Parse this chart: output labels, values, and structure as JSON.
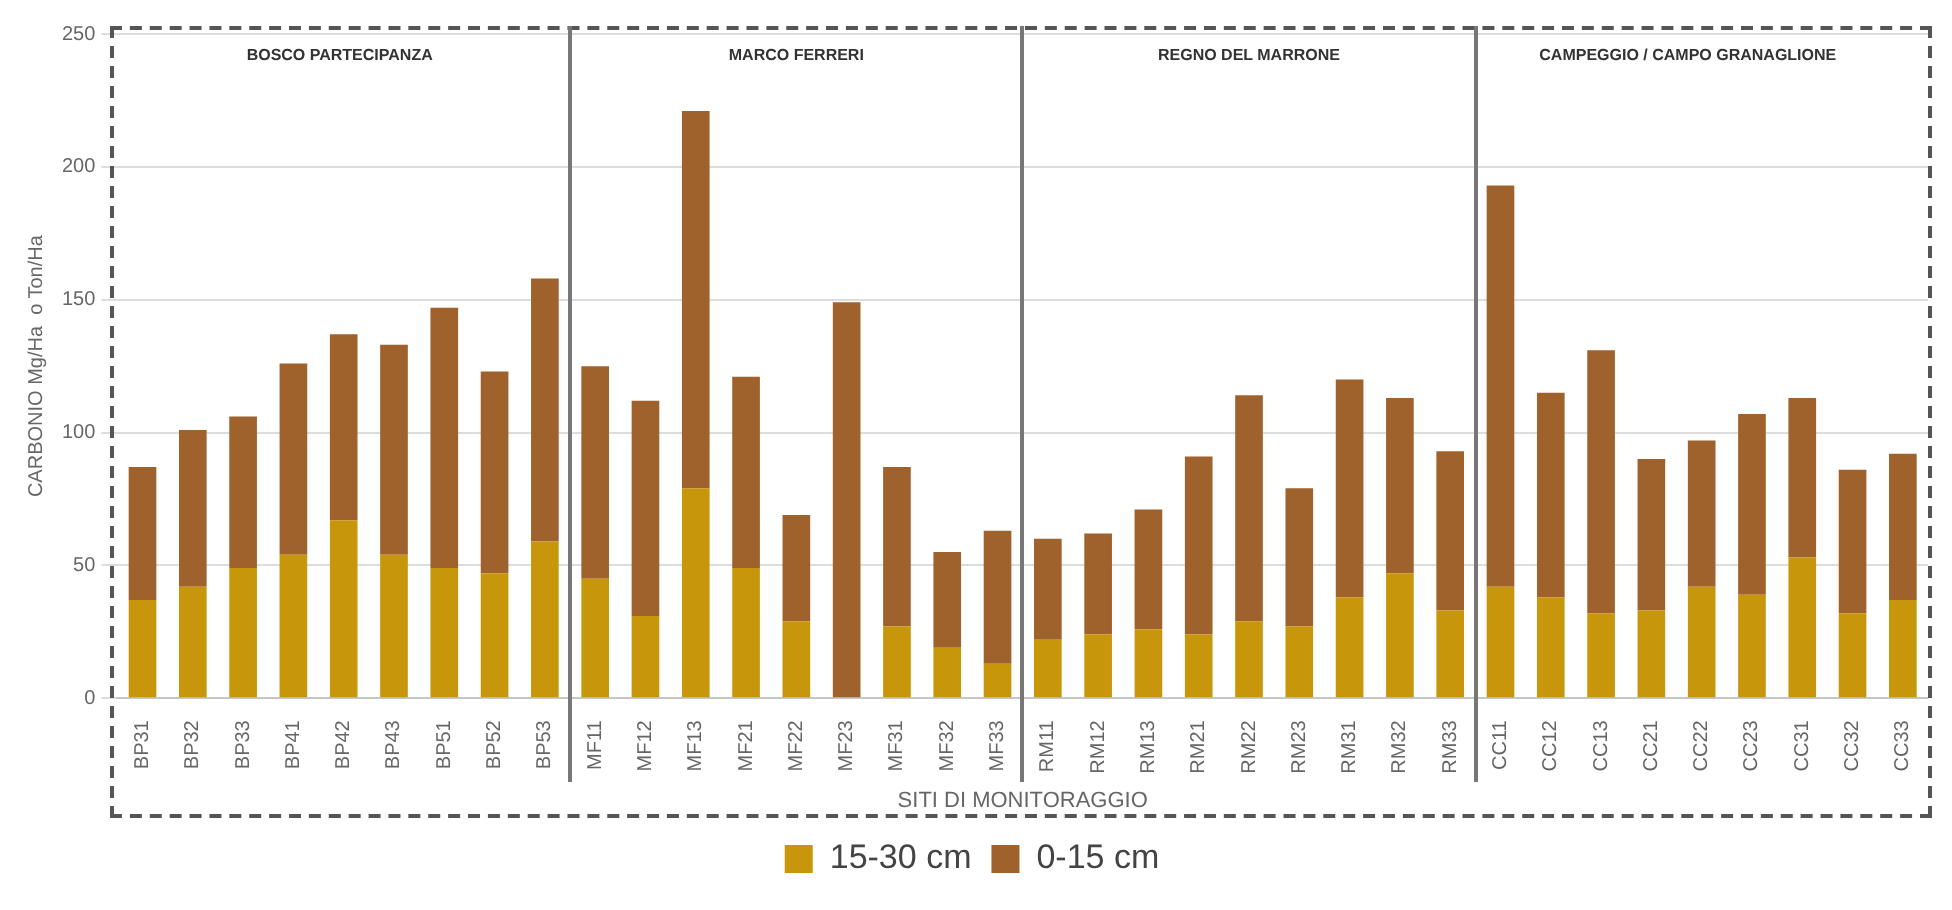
{
  "chart_data": {
    "type": "bar",
    "stacked": true,
    "ylabel": "CARBONIO Mg/Ha  o Ton/Ha",
    "xlabel": "SITI DI MONITORAGGIO",
    "categories": [
      "BP31",
      "BP32",
      "BP33",
      "BP41",
      "BP42",
      "BP43",
      "BP51",
      "BP52",
      "BP53",
      "MF11",
      "MF12",
      "MF13",
      "MF21",
      "MF22",
      "MF23",
      "MF31",
      "MF32",
      "MF33",
      "RM11",
      "RM12",
      "RM13",
      "RM21",
      "RM22",
      "RM23",
      "RM31",
      "RM32",
      "RM33",
      "CC11",
      "CC12",
      "CC13",
      "CC21",
      "CC22",
      "CC23",
      "CC31",
      "CC32",
      "CC33"
    ],
    "series": [
      {
        "name": "15-30 cm",
        "color": "#c8960a",
        "values": [
          37,
          42,
          49,
          54,
          67,
          54,
          49,
          47,
          59,
          45,
          31,
          79,
          49,
          29,
          0,
          27,
          19,
          13,
          22,
          24,
          26,
          24,
          29,
          27,
          38,
          47,
          33,
          42,
          38,
          32,
          33,
          42,
          39,
          53,
          32,
          37
        ]
      },
      {
        "name": "0-15 cm",
        "color": "#a0622d",
        "values": [
          50,
          59,
          57,
          72,
          70,
          79,
          98,
          76,
          99,
          80,
          81,
          142,
          72,
          40,
          149,
          60,
          36,
          50,
          38,
          38,
          45,
          67,
          85,
          52,
          82,
          66,
          60,
          151,
          77,
          99,
          57,
          55,
          68,
          60,
          54,
          55
        ]
      }
    ],
    "ylim": [
      0,
      250
    ],
    "yticks": [
      0,
      50,
      100,
      150,
      200,
      250
    ],
    "grid": "y",
    "legend": "bottom",
    "annotations": [
      "BOSCO PARTECIPANZA",
      "MARCO FERRERI",
      "REGNO DEL MARRONE",
      "CAMPEGGIO  / CAMPO GRANAGLIONE"
    ]
  }
}
